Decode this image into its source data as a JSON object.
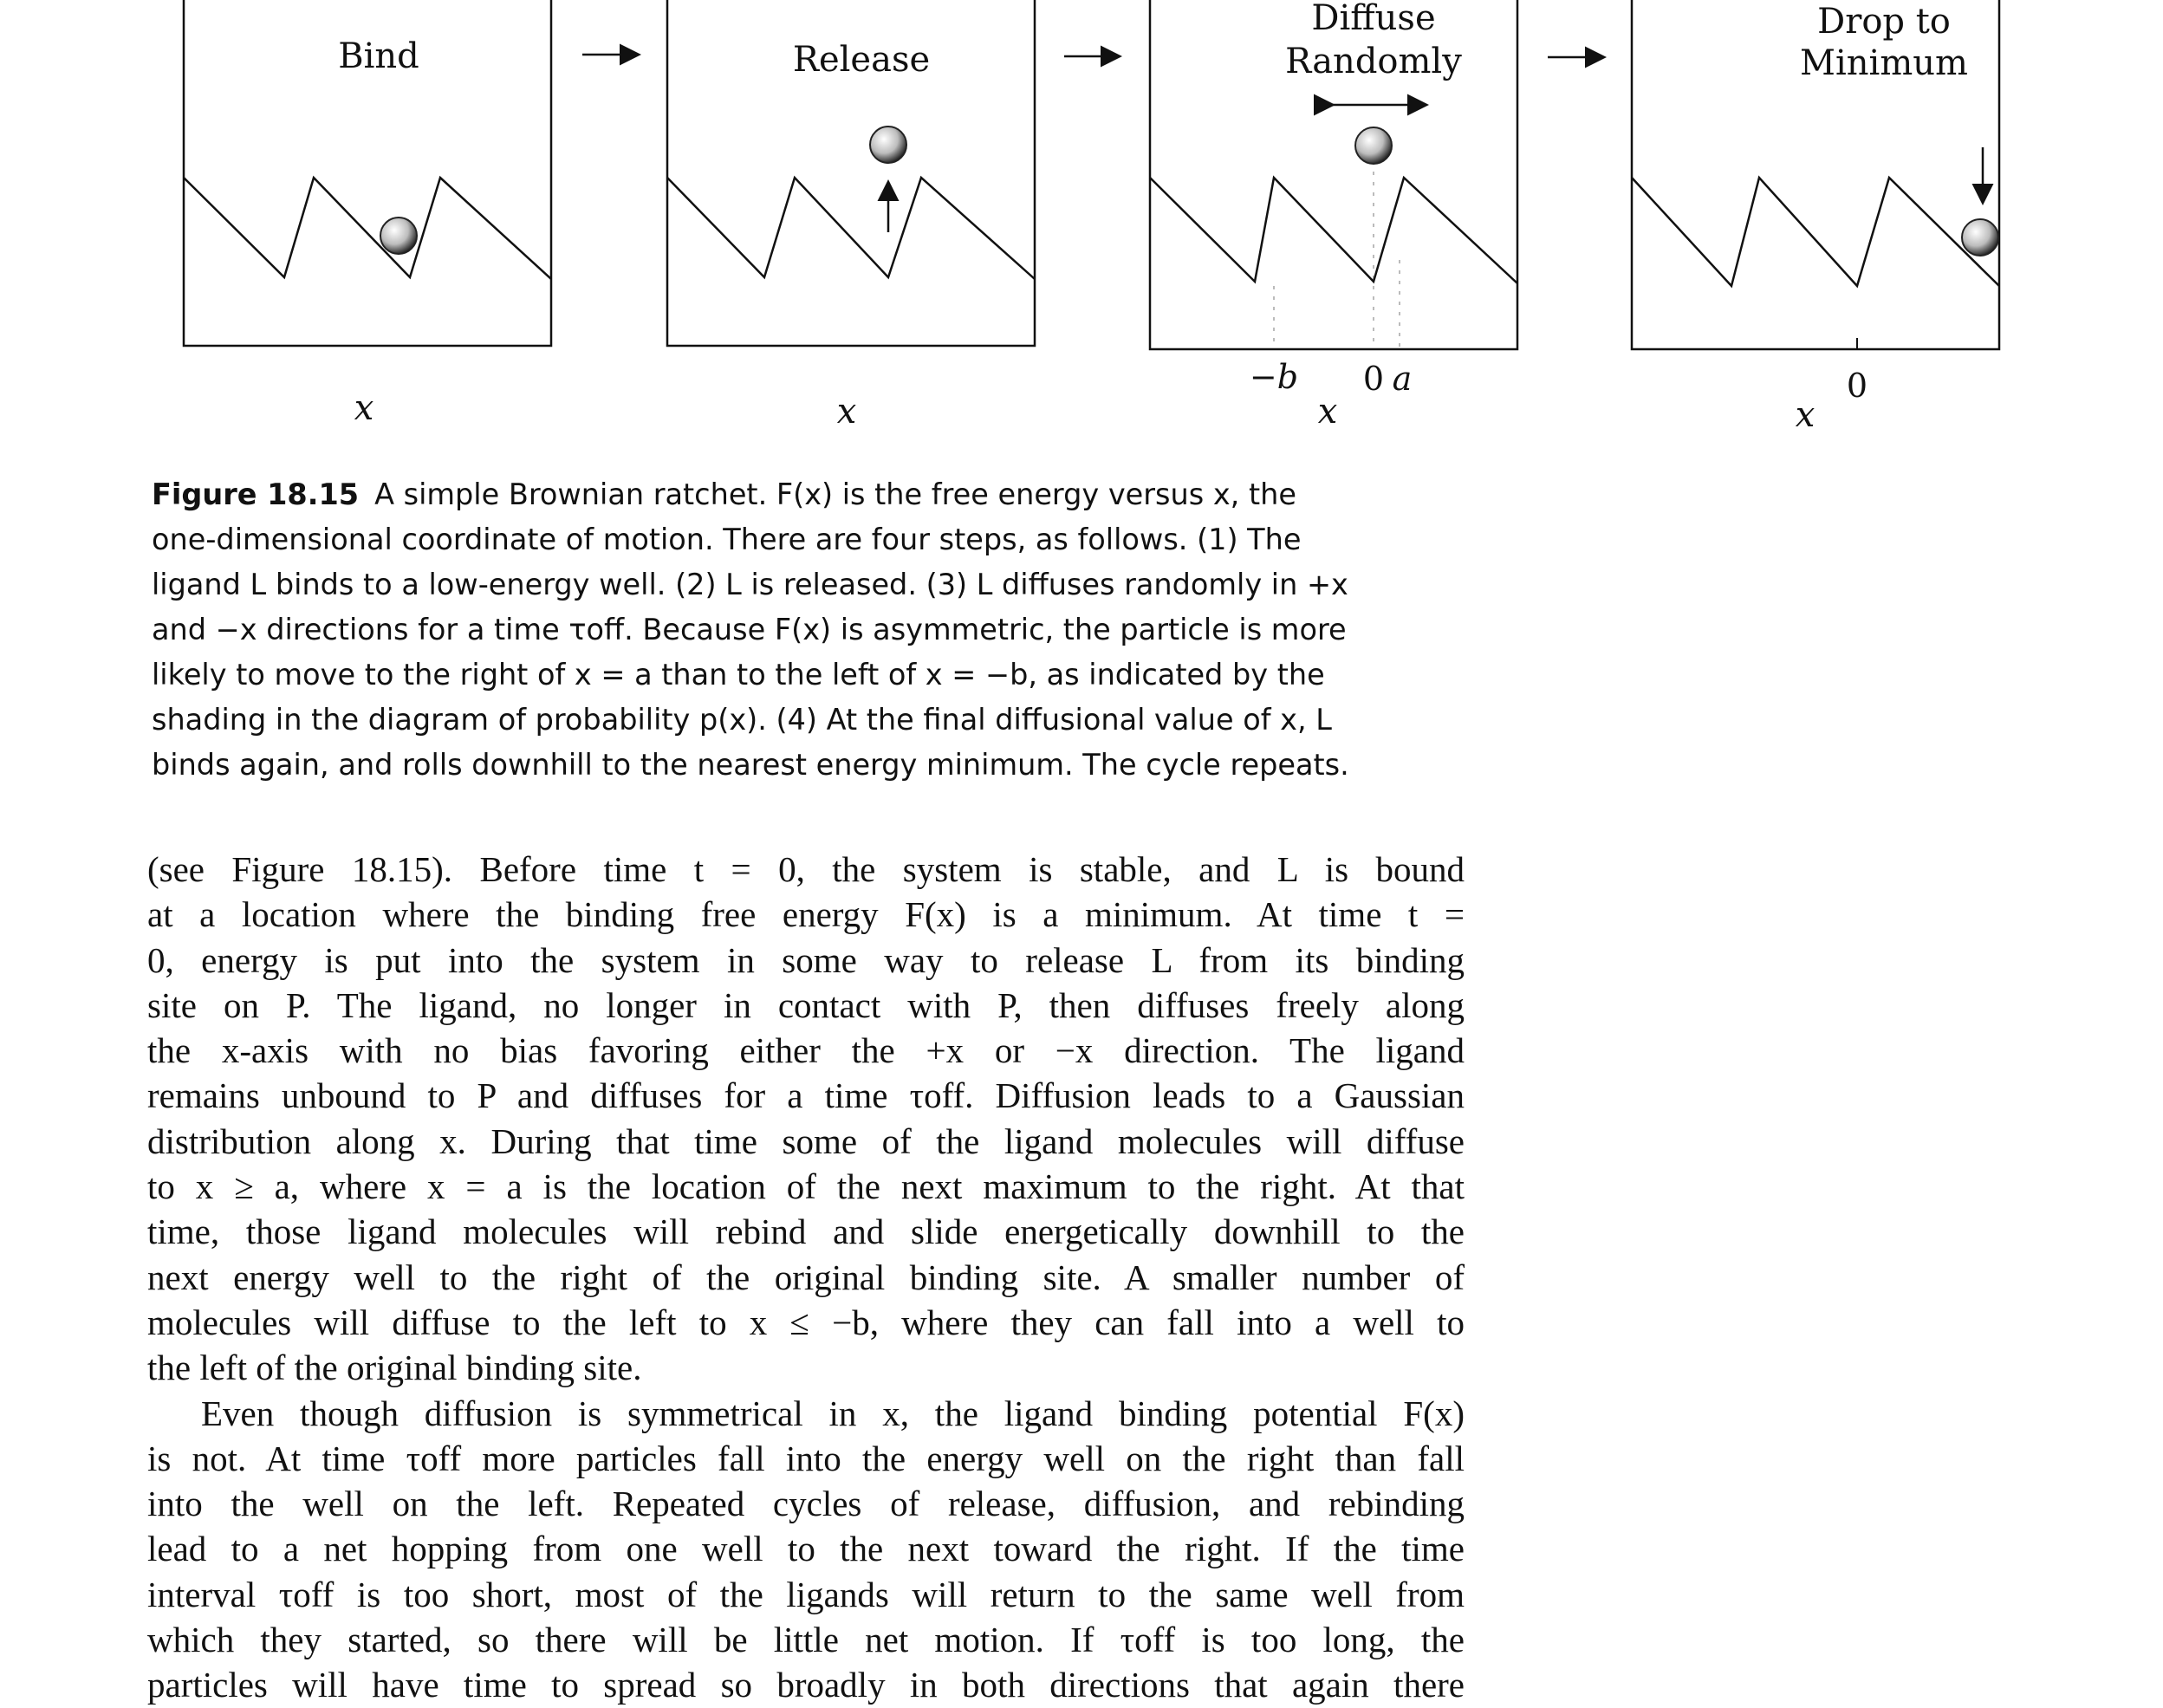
{
  "figure": {
    "panels": [
      {
        "title_lines": [
          "Bind"
        ],
        "axis_label": "x",
        "tick_labels": []
      },
      {
        "title_lines": [
          "Release"
        ],
        "axis_label": "x",
        "tick_labels": []
      },
      {
        "title_lines": [
          "Diffuse",
          "Randomly"
        ],
        "axis_label": "x",
        "tick_labels": [
          "−b",
          "0",
          "a"
        ]
      },
      {
        "title_lines": [
          "Drop to",
          "Minimum"
        ],
        "axis_label": "x",
        "tick_labels": [
          "0"
        ]
      }
    ],
    "arrow_glyph": "→"
  },
  "caption": {
    "label": "Figure 18.15",
    "lines": [
      "A simple Brownian ratchet. F(x) is the free energy versus x, the",
      "one-dimensional coordinate of motion. There are four steps, as follows. (1) The",
      "ligand L binds to a low-energy well. (2) L is released. (3) L diffuses randomly in +x",
      "and −x directions for a time τoff. Because F(x) is asymmetric, the particle is more",
      "likely to move to the right of x = a than to the left of x = −b, as indicated by the",
      "shading in the diagram of probability p(x). (4) At the final diffusional value of x, L",
      "binds again, and rolls downhill to the nearest energy minimum. The cycle repeats."
    ]
  },
  "body": {
    "paragraph1": [
      "(see Figure 18.15). Before time t = 0, the system is stable, and L is bound",
      "at a location where the binding free energy F(x) is a minimum. At time t =",
      "0, energy is put into the system in some way to release L from its binding",
      "site on P. The ligand, no longer in contact with P, then diffuses freely along",
      "the x-axis with no bias favoring either the +x or −x direction. The ligand",
      "remains unbound to P and diffuses for a time τoff. Diffusion leads to a Gaussian",
      "distribution along x. During that time some of the ligand molecules will diffuse",
      "to x ≥ a, where x = a is the location of the next maximum to the right. At that",
      "time, those ligand molecules will rebind and slide energetically downhill to the",
      "next energy well to the right of the original binding site. A smaller number of",
      "molecules will diffuse to the left to x ≤ −b, where they can fall into a well to",
      "the left of the original binding site."
    ],
    "paragraph2": [
      "Even though diffusion is symmetrical in x, the ligand binding potential F(x)",
      "is not. At time τoff more particles fall into the energy well on the right than fall",
      "into the well on the left. Repeated cycles of release, diffusion, and rebinding",
      "lead to a net hopping from one well to the next toward the right. If the time",
      "interval τoff is too short, most of the ligands will return to the same well from",
      "which they started, so there will be little net motion. If τoff is too long, the",
      "particles will have time to spread so broadly in both directions that again there"
    ]
  }
}
